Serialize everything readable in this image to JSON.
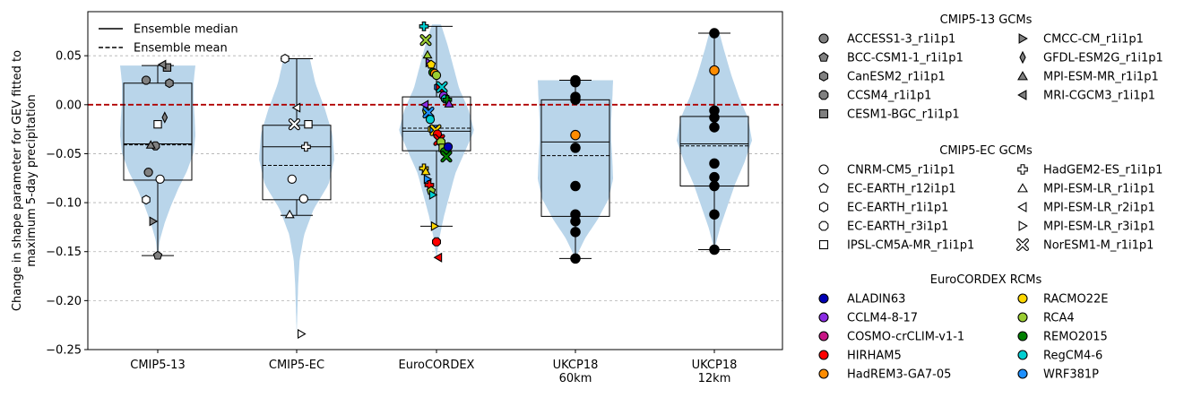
{
  "chart_data": {
    "type": "violin",
    "ylabel": "Change in shape parameter for GEV fitted to maximum 5-day precipitation",
    "ylabel_lines": [
      "Change in shape parameter for GEV fitted to",
      "maximum 5-day precipitation"
    ],
    "ylim": [
      -0.25,
      0.095
    ],
    "yticks": [
      0.05,
      0.0,
      -0.05,
      -0.1,
      -0.15,
      -0.2,
      -0.25
    ],
    "ytick_labels": [
      "0.05",
      "0.00",
      "−0.05",
      "−0.10",
      "−0.15",
      "−0.20",
      "−0.25"
    ],
    "grid": "horizontal dashed",
    "reference_line": {
      "y": 0.0,
      "color": "#b00000",
      "style": "dashed"
    },
    "line_legend": {
      "placement": "top-left",
      "entries": [
        {
          "label": "Ensemble median",
          "style": "solid"
        },
        {
          "label": "Ensemble mean",
          "style": "dashed"
        }
      ]
    },
    "categories": [
      {
        "id": "cmip5_13",
        "label": [
          "CMIP5-13"
        ]
      },
      {
        "id": "cmip5_ec",
        "label": [
          "CMIP5-EC"
        ]
      },
      {
        "id": "eurocordex",
        "label": [
          "EuroCORDEX"
        ]
      },
      {
        "id": "ukcp18_60",
        "label": [
          "UKCP18",
          "60km"
        ]
      },
      {
        "id": "ukcp18_12",
        "label": [
          "UKCP18",
          "12km"
        ]
      }
    ],
    "groups": [
      {
        "id": "cmip5_13",
        "box": {
          "q1": -0.077,
          "median": -0.04,
          "q3": 0.022,
          "whisker_low": -0.154,
          "whisker_high": 0.04,
          "mean": -0.041
        },
        "violin": {
          "min": -0.157,
          "max": 0.04,
          "width_profile": [
            0.0,
            0.05,
            0.18,
            0.35,
            0.55,
            0.78,
            0.95,
            1.0,
            0.98,
            0.95,
            0.95,
            1.0
          ]
        },
        "points": [
          {
            "model": "ACCESS1-3_r1i1p1",
            "y": 0.025
          },
          {
            "model": "BCC-CSM1-1_r1i1p1",
            "y": -0.154
          },
          {
            "model": "CanESM2_r1i1p1",
            "y": 0.022
          },
          {
            "model": "CCSM4_r1i1p1",
            "y": -0.042
          },
          {
            "model": "CESM1-BGC_r1i1p1",
            "y": 0.038
          },
          {
            "model": "CMCC-CM_r1i1p1",
            "y": -0.119
          },
          {
            "model": "GFDL-ESM2G_r1i1p1",
            "y": -0.013
          },
          {
            "model": "MPI-ESM-MR_r1i1p1",
            "y": -0.041
          },
          {
            "model": "MRI-CGCM3_r1i1p1",
            "y": 0.041
          },
          {
            "model": "ACCESS1-3_r1i1p1",
            "y": -0.069
          },
          {
            "model": "CNRM-CM5_r1i1p1",
            "y": -0.076
          },
          {
            "model": "EC-EARTH_r1i1p1",
            "y": -0.097
          },
          {
            "model": "IPSL-CM5A-MR_r1i1p1",
            "y": -0.02
          }
        ]
      },
      {
        "id": "cmip5_ec",
        "box": {
          "q1": -0.097,
          "median": -0.043,
          "q3": -0.021,
          "whisker_low": -0.113,
          "whisker_high": 0.047,
          "mean": -0.062
        },
        "violin": {
          "min": -0.235,
          "max": 0.047,
          "width_profile": [
            0.0,
            0.02,
            0.04,
            0.08,
            0.2,
            0.45,
            0.85,
            1.0,
            0.95,
            0.75,
            0.5,
            0.35
          ]
        },
        "points": [
          {
            "model": "EC-EARTH_r1i1p1",
            "y": 0.047
          },
          {
            "model": "MPI-ESM-LR_r2i1p1",
            "y": -0.003
          },
          {
            "model": "IPSL-CM5A-MR_r1i1p1",
            "y": -0.02
          },
          {
            "model": "NorESM1-M_r1i1p1",
            "y": -0.02
          },
          {
            "model": "HadGEM2-ES_r1i1p1",
            "y": -0.043
          },
          {
            "model": "CNRM-CM5_r1i1p1",
            "y": -0.076
          },
          {
            "model": "CNRM-CM5_r1i1p1",
            "y": -0.096
          },
          {
            "model": "MPI-ESM-LR_r1i1p1",
            "y": -0.112
          },
          {
            "model": "MPI-ESM-LR_r3i1p1",
            "y": -0.234
          }
        ]
      },
      {
        "id": "eurocordex",
        "box": {
          "q1": -0.047,
          "median": -0.027,
          "q3": 0.008,
          "whisker_low": -0.124,
          "whisker_high": 0.08,
          "mean": -0.024
        },
        "violin": {
          "min": -0.157,
          "max": 0.082,
          "width_profile": [
            0.0,
            0.08,
            0.2,
            0.35,
            0.5,
            0.75,
            1.0,
            0.85,
            0.6,
            0.45,
            0.3,
            0.12
          ]
        },
        "points": [
          {
            "model": "HadGEM2-ES_r1i1p1",
            "rcm": "RegCM4-6",
            "y": 0.08
          },
          {
            "model": "NorESM1-M_r1i1p1",
            "rcm": "RCA4",
            "y": 0.066
          },
          {
            "model": "MPI-ESM-LR_r1i1p1",
            "rcm": "RCA4",
            "y": 0.051
          },
          {
            "model": "MPI-ESM-LR_r3i1p1",
            "rcm": "CCLM4-8-17",
            "y": 0.043
          },
          {
            "model": "EC-EARTH_r12i1p1",
            "rcm": "RACMO22E",
            "y": 0.041
          },
          {
            "model": "CNRM-CM5_r1i1p1",
            "rcm": "REMO2015",
            "y": 0.033
          },
          {
            "model": "CNRM-CM5_r1i1p1",
            "rcm": "HadREM3-GA7-05",
            "y": 0.032
          },
          {
            "model": "CNRM-CM5_r1i1p1",
            "rcm": "RCA4",
            "y": 0.03
          },
          {
            "model": "EC-EARTH_r1i1p1",
            "rcm": "WRF381P",
            "y": 0.018
          },
          {
            "model": "IPSL-CM5A-MR_r1i1p1",
            "rcm": "HIRHAM5",
            "y": 0.017
          },
          {
            "model": "NorESM1-M_r1i1p1",
            "rcm": "RegCM4-6",
            "y": 0.018
          },
          {
            "model": "CNRM-CM5_r1i1p1",
            "rcm": "CCLM4-8-17",
            "y": 0.009
          },
          {
            "model": "EC-EARTH_r3i1p1",
            "rcm": "RegCM4-6",
            "y": 0.006
          },
          {
            "model": "HadGEM2-ES_r1i1p1",
            "rcm": "REMO2015",
            "y": 0.005
          },
          {
            "model": "MPI-ESM-LR_r1i1p1",
            "rcm": "CCLM4-8-17",
            "y": 0.001
          },
          {
            "model": "MPI-ESM-LR_r2i1p1",
            "rcm": "CCLM4-8-17",
            "y": 0.0
          },
          {
            "model": "EC-EARTH_r12i1p1",
            "rcm": "RCA4",
            "y": -0.007
          },
          {
            "model": "NorESM1-M_r1i1p1",
            "rcm": "WRF381P",
            "y": -0.008
          },
          {
            "model": "CNRM-CM5_r1i1p1",
            "rcm": "RegCM4-6",
            "y": -0.015
          },
          {
            "model": "EC-EARTH_r1i1p1",
            "rcm": "RACMO22E",
            "y": -0.025
          },
          {
            "model": "IPSL-CM5A-MR_r1i1p1",
            "rcm": "WRF381P",
            "y": -0.025
          },
          {
            "model": "NorESM1-M_r1i1p1",
            "rcm": "RACMO22E",
            "y": -0.026
          },
          {
            "model": "CNRM-CM5_r1i1p1",
            "rcm": "HIRHAM5",
            "y": -0.03
          },
          {
            "model": "NorESM1-M_r1i1p1",
            "rcm": "HIRHAM5",
            "y": -0.036
          },
          {
            "model": "EC-EARTH_r3i1p1",
            "rcm": "RCA4",
            "y": -0.038
          },
          {
            "model": "IPSL-CM5A-MR_r1i1p1",
            "rcm": "RCA4",
            "y": -0.044
          },
          {
            "model": "CNRM-CM5_r1i1p1",
            "rcm": "REMO2015",
            "y": -0.048
          },
          {
            "model": "NorESM1-M_r1i1p1",
            "rcm": "REMO2015",
            "y": -0.053
          },
          {
            "model": "CNRM-CM5_r1i1p1",
            "rcm": "ALADIN63",
            "y": -0.043
          },
          {
            "model": "HadGEM2-ES_r1i1p1",
            "rcm": "RACMO22E",
            "y": -0.065
          },
          {
            "model": "MPI-ESM-LR_r1i1p1",
            "rcm": "RACMO22E",
            "y": -0.068
          },
          {
            "model": "MPI-ESM-LR_r3i1p1",
            "rcm": "WRF381P",
            "y": -0.076
          },
          {
            "model": "HadGEM2-ES_r1i1p1",
            "rcm": "HIRHAM5",
            "y": -0.082
          },
          {
            "model": "EC-EARTH_r12i1p1",
            "rcm": "RCA4",
            "y": -0.088
          },
          {
            "model": "MPI-ESM-LR_r3i1p1",
            "rcm": "RegCM4-6",
            "y": -0.092
          },
          {
            "model": "MPI-ESM-LR_r3i1p1",
            "rcm": "RACMO22E",
            "y": -0.124
          },
          {
            "model": "EC-EARTH_r3i1p1",
            "rcm": "HIRHAM5",
            "y": -0.14
          },
          {
            "model": "MPI-ESM-LR_r2i1p1",
            "rcm": "HIRHAM5",
            "y": -0.156
          }
        ]
      },
      {
        "id": "ukcp18_60",
        "box": {
          "q1": -0.114,
          "median": -0.038,
          "q3": 0.005,
          "whisker_low": -0.157,
          "whisker_high": 0.025,
          "mean": -0.052
        },
        "violin": {
          "min": -0.157,
          "max": 0.025,
          "width_profile": [
            0.0,
            0.25,
            0.6,
            0.88,
            1.0,
            0.98,
            0.95,
            0.95,
            0.98,
            1.0
          ]
        },
        "points": [
          {
            "model": "UKCP18 60km member",
            "y": 0.025
          },
          {
            "model": "UKCP18 60km member",
            "y": 0.023
          },
          {
            "model": "UKCP18 60km member",
            "y": 0.008
          },
          {
            "model": "UKCP18 60km member",
            "y": 0.005
          },
          {
            "model": "UKCP18 60km member",
            "rcm": "HadREM3-GA7-05",
            "y": -0.031
          },
          {
            "model": "UKCP18 60km member",
            "y": -0.044
          },
          {
            "model": "UKCP18 60km member",
            "y": -0.083
          },
          {
            "model": "UKCP18 60km member",
            "y": -0.112
          },
          {
            "model": "UKCP18 60km member",
            "y": -0.119
          },
          {
            "model": "UKCP18 60km member",
            "y": -0.13
          },
          {
            "model": "UKCP18 60km member",
            "y": -0.157
          }
        ]
      },
      {
        "id": "ukcp18_12",
        "box": {
          "q1": -0.083,
          "median": -0.04,
          "q3": -0.012,
          "whisker_low": -0.148,
          "whisker_high": 0.073,
          "mean": -0.042
        },
        "violin": {
          "min": -0.148,
          "max": 0.075,
          "width_profile": [
            0.0,
            0.15,
            0.35,
            0.55,
            0.8,
            1.0,
            0.9,
            0.65,
            0.45,
            0.28,
            0.12
          ]
        },
        "points": [
          {
            "model": "UKCP18 12km member",
            "y": 0.073
          },
          {
            "model": "UKCP18 12km member",
            "rcm": "HadREM3-GA7-05",
            "y": 0.035
          },
          {
            "model": "UKCP18 12km member",
            "y": -0.006
          },
          {
            "model": "UKCP18 12km member",
            "y": -0.013
          },
          {
            "model": "UKCP18 12km member",
            "y": -0.023
          },
          {
            "model": "UKCP18 12km member",
            "y": -0.06
          },
          {
            "model": "UKCP18 12km member",
            "y": -0.074
          },
          {
            "model": "UKCP18 12km member",
            "y": -0.083
          },
          {
            "model": "UKCP18 12km member",
            "y": -0.112
          },
          {
            "model": "UKCP18 12km member",
            "y": -0.148
          }
        ]
      }
    ],
    "marker_legends": [
      {
        "title": "CMIP5-13 GCMs",
        "entries": [
          {
            "label": "ACCESS1-3_r1i1p1",
            "marker": "circle",
            "fill": "#808080"
          },
          {
            "label": "BCC-CSM1-1_r1i1p1",
            "marker": "pentagon",
            "fill": "#808080"
          },
          {
            "label": "CanESM2_r1i1p1",
            "marker": "hexagon",
            "fill": "#808080"
          },
          {
            "label": "CCSM4_r1i1p1",
            "marker": "octagon",
            "fill": "#808080"
          },
          {
            "label": "CESM1-BGC_r1i1p1",
            "marker": "square",
            "fill": "#808080"
          },
          {
            "label": "CMCC-CM_r1i1p1",
            "marker": "triangle-right",
            "fill": "#808080"
          },
          {
            "label": "GFDL-ESM2G_r1i1p1",
            "marker": "thin-diamond",
            "fill": "#808080"
          },
          {
            "label": "MPI-ESM-MR_r1i1p1",
            "marker": "triangle-up",
            "fill": "#808080"
          },
          {
            "label": "MRI-CGCM3_r1i1p1",
            "marker": "triangle-left",
            "fill": "#808080"
          }
        ]
      },
      {
        "title": "CMIP5-EC GCMs",
        "entries": [
          {
            "label": "CNRM-CM5_r1i1p1",
            "marker": "circle",
            "fill": "#ffffff"
          },
          {
            "label": "EC-EARTH_r12i1p1",
            "marker": "pentagon",
            "fill": "#ffffff"
          },
          {
            "label": "EC-EARTH_r1i1p1",
            "marker": "hexagon",
            "fill": "#ffffff"
          },
          {
            "label": "EC-EARTH_r3i1p1",
            "marker": "octagon",
            "fill": "#ffffff"
          },
          {
            "label": "IPSL-CM5A-MR_r1i1p1",
            "marker": "square",
            "fill": "#ffffff"
          },
          {
            "label": "HadGEM2-ES_r1i1p1",
            "marker": "plus",
            "fill": "#ffffff"
          },
          {
            "label": "MPI-ESM-LR_r1i1p1",
            "marker": "triangle-up",
            "fill": "#ffffff"
          },
          {
            "label": "MPI-ESM-LR_r2i1p1",
            "marker": "triangle-left",
            "fill": "#ffffff"
          },
          {
            "label": "MPI-ESM-LR_r3i1p1",
            "marker": "triangle-right",
            "fill": "#ffffff"
          },
          {
            "label": "NorESM1-M_r1i1p1",
            "marker": "x",
            "fill": "#ffffff"
          }
        ]
      },
      {
        "title": "EuroCORDEX RCMs",
        "entries": [
          {
            "label": "ALADIN63",
            "marker": "circle",
            "fill": "#0000b4"
          },
          {
            "label": "CCLM4-8-17",
            "marker": "circle",
            "fill": "#8a2be2"
          },
          {
            "label": "COSMO-crCLIM-v1-1",
            "marker": "circle",
            "fill": "#c71585"
          },
          {
            "label": "HIRHAM5",
            "marker": "circle",
            "fill": "#ff0000"
          },
          {
            "label": "HadREM3-GA7-05",
            "marker": "circle",
            "fill": "#ff8c00"
          },
          {
            "label": "RACMO22E",
            "marker": "circle",
            "fill": "#ffd700"
          },
          {
            "label": "RCA4",
            "marker": "circle",
            "fill": "#9acd32"
          },
          {
            "label": "REMO2015",
            "marker": "circle",
            "fill": "#008000"
          },
          {
            "label": "RegCM4-6",
            "marker": "circle",
            "fill": "#00ced1"
          },
          {
            "label": "WRF381P",
            "marker": "circle",
            "fill": "#1e90ff"
          }
        ]
      }
    ],
    "colors": {
      "violin": "#b9d5ea",
      "reference_line": "#b00000",
      "grid": "#b0b0b0",
      "ukcp18_point": "#000000"
    }
  }
}
